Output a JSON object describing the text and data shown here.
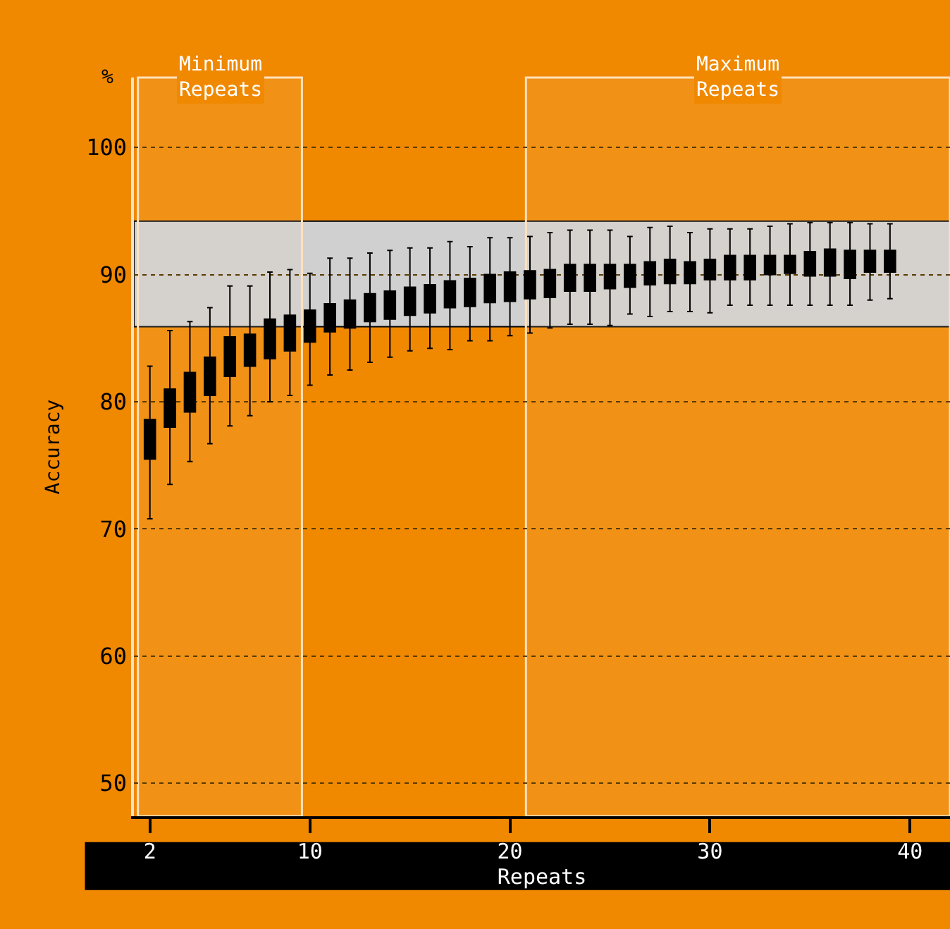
{
  "chart_data": {
    "type": "box",
    "xlabel": "Repeats",
    "ylabel": "Accuracy",
    "annotations": [
      "%"
    ],
    "x": [
      2,
      3,
      4,
      5,
      6,
      7,
      8,
      9,
      10,
      11,
      12,
      13,
      14,
      15,
      16,
      17,
      18,
      19,
      20,
      21,
      22,
      23,
      24,
      25,
      26,
      27,
      28,
      29,
      30,
      31,
      32,
      33,
      34,
      35,
      36,
      37,
      38,
      39
    ],
    "xlim": [
      1.2,
      42
    ],
    "xticks": [
      2,
      10,
      20,
      30,
      40
    ],
    "ylim": [
      47.4,
      105.5
    ],
    "yticks": [
      50,
      60,
      70,
      80,
      90,
      100
    ],
    "grid": "y",
    "series": [
      {
        "color": "#000000",
        "boxes": [
          {
            "low": 70.8,
            "q1": 75.5,
            "median": 77.0,
            "q3": 78.6,
            "high": 82.8
          },
          {
            "low": 73.5,
            "q1": 78.0,
            "median": 79.5,
            "q3": 81.0,
            "high": 85.6
          },
          {
            "low": 75.3,
            "q1": 79.2,
            "median": 80.8,
            "q3": 82.3,
            "high": 86.3
          },
          {
            "low": 76.7,
            "q1": 80.5,
            "median": 82.0,
            "q3": 83.5,
            "high": 87.4
          },
          {
            "low": 78.1,
            "q1": 82.0,
            "median": 83.5,
            "q3": 85.1,
            "high": 89.1
          },
          {
            "low": 78.9,
            "q1": 82.8,
            "median": 84.0,
            "q3": 85.3,
            "high": 89.1
          },
          {
            "low": 80.0,
            "q1": 83.4,
            "median": 85.0,
            "q3": 86.5,
            "high": 90.2
          },
          {
            "low": 80.5,
            "q1": 84.0,
            "median": 85.4,
            "q3": 86.8,
            "high": 90.4
          },
          {
            "low": 81.3,
            "q1": 84.7,
            "median": 86.0,
            "q3": 87.2,
            "high": 90.1
          },
          {
            "low": 82.1,
            "q1": 85.5,
            "median": 86.6,
            "q3": 87.7,
            "high": 91.3
          },
          {
            "low": 82.5,
            "q1": 85.8,
            "median": 86.9,
            "q3": 88.0,
            "high": 91.3
          },
          {
            "low": 83.1,
            "q1": 86.3,
            "median": 87.4,
            "q3": 88.5,
            "high": 91.7
          },
          {
            "low": 83.5,
            "q1": 86.5,
            "median": 87.6,
            "q3": 88.7,
            "high": 91.9
          },
          {
            "low": 84.0,
            "q1": 86.8,
            "median": 87.9,
            "q3": 89.0,
            "high": 92.1
          },
          {
            "low": 84.2,
            "q1": 87.0,
            "median": 88.1,
            "q3": 89.2,
            "high": 92.1
          },
          {
            "low": 84.1,
            "q1": 87.4,
            "median": 88.4,
            "q3": 89.5,
            "high": 92.6
          },
          {
            "low": 84.8,
            "q1": 87.5,
            "median": 88.6,
            "q3": 89.7,
            "high": 92.2
          },
          {
            "low": 84.8,
            "q1": 87.8,
            "median": 88.9,
            "q3": 90.0,
            "high": 92.9
          },
          {
            "low": 85.2,
            "q1": 87.9,
            "median": 89.0,
            "q3": 90.2,
            "high": 92.9
          },
          {
            "low": 85.4,
            "q1": 88.1,
            "median": 89.2,
            "q3": 90.3,
            "high": 93.0
          },
          {
            "low": 85.8,
            "q1": 88.2,
            "median": 89.3,
            "q3": 90.4,
            "high": 93.3
          },
          {
            "low": 86.1,
            "q1": 88.7,
            "median": 89.7,
            "q3": 90.8,
            "high": 93.5
          },
          {
            "low": 86.1,
            "q1": 88.7,
            "median": 89.7,
            "q3": 90.8,
            "high": 93.5
          },
          {
            "low": 86.0,
            "q1": 88.9,
            "median": 89.8,
            "q3": 90.8,
            "high": 93.5
          },
          {
            "low": 86.9,
            "q1": 89.0,
            "median": 89.9,
            "q3": 90.8,
            "high": 93.0
          },
          {
            "low": 86.7,
            "q1": 89.2,
            "median": 90.1,
            "q3": 91.0,
            "high": 93.7
          },
          {
            "low": 87.1,
            "q1": 89.3,
            "median": 90.2,
            "q3": 91.2,
            "high": 93.8
          },
          {
            "low": 87.1,
            "q1": 89.3,
            "median": 90.1,
            "q3": 91.0,
            "high": 93.3
          },
          {
            "low": 87.0,
            "q1": 89.6,
            "median": 90.4,
            "q3": 91.2,
            "high": 93.6
          },
          {
            "low": 87.6,
            "q1": 89.6,
            "median": 90.5,
            "q3": 91.5,
            "high": 93.6
          },
          {
            "low": 87.6,
            "q1": 89.6,
            "median": 90.5,
            "q3": 91.5,
            "high": 93.6
          },
          {
            "low": 87.6,
            "q1": 90.0,
            "median": 90.7,
            "q3": 91.5,
            "high": 93.8
          },
          {
            "low": 87.6,
            "q1": 90.1,
            "median": 90.8,
            "q3": 91.5,
            "high": 94.0
          },
          {
            "low": 87.6,
            "q1": 89.9,
            "median": 90.8,
            "q3": 91.8,
            "high": 94.1
          },
          {
            "low": 87.6,
            "q1": 89.9,
            "median": 90.9,
            "q3": 92.0,
            "high": 94.1
          },
          {
            "low": 87.6,
            "q1": 89.7,
            "median": 90.8,
            "q3": 91.9,
            "high": 94.1
          },
          {
            "low": 88.0,
            "q1": 90.2,
            "median": 91.0,
            "q3": 91.9,
            "high": 94.0
          },
          {
            "low": 88.1,
            "q1": 90.2,
            "median": 91.0,
            "q3": 91.9,
            "high": 94.0
          }
        ]
      }
    ],
    "bands": [
      {
        "axis": "y",
        "from": 85.9,
        "to": 94.2,
        "color": "#d0d0d0"
      },
      {
        "axis": "x",
        "from": 1.4,
        "to": 9.6,
        "label": "Minimum\nRepeats",
        "color": "#ffe2bd"
      },
      {
        "axis": "x",
        "from": 20.8,
        "to": 42,
        "label": "Maximum\nRepeats",
        "color": "#ffe2bd"
      }
    ]
  }
}
